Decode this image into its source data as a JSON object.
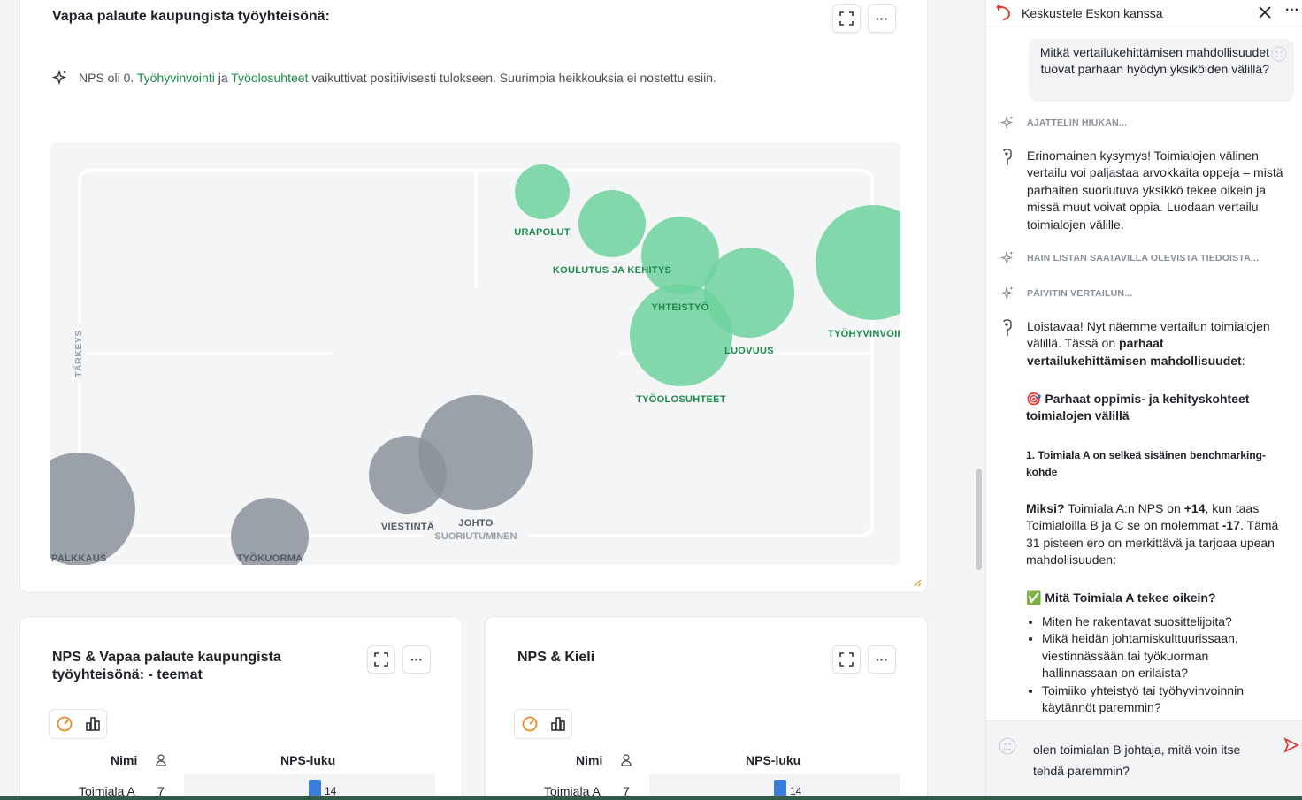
{
  "top_card": {
    "title": "Vapaa palaute kaupungista työyhteisönä:",
    "insight_prefix": "NPS oli 0.",
    "insight_link1": "Työhyvinvointi",
    "insight_mid": "ja",
    "insight_link2": "Työolosuhteet",
    "insight_suffix": "vaikuttivat positiivisesti tulokseen. Suurimpia heikkouksia ei nostettu esiin.",
    "fullscreen_icon": "expand-icon",
    "more_label": "···"
  },
  "bubble_chart": {
    "type": "scatter",
    "ylabel": "TÄRKEYS",
    "xlabel": "SUORIUTUMINEN",
    "positive_color": "#6fd29d",
    "neutral_color": "#8a929a",
    "points": [
      {
        "name": "URAPOLUT",
        "group": "positive"
      },
      {
        "name": "KOULUTUS JA KEHITYS",
        "group": "positive"
      },
      {
        "name": "YHTEISTYÖ",
        "group": "positive"
      },
      {
        "name": "LUOVUUS",
        "group": "positive"
      },
      {
        "name": "TYÖOLOSUHTEET",
        "group": "positive"
      },
      {
        "name": "TYÖHYVINVOII",
        "group": "positive"
      },
      {
        "name": "VIESTINTÄ",
        "group": "neutral"
      },
      {
        "name": "JOHTO",
        "group": "neutral"
      },
      {
        "name": "PALKKAUS",
        "group": "neutral"
      },
      {
        "name": "TYÖKUORMA",
        "group": "neutral"
      }
    ]
  },
  "card_themes": {
    "title": "NPS & Vapaa palaute kaupungista työyhteisönä: - teemat",
    "col_name": "Nimi",
    "col_nps": "NPS-luku",
    "row_name": "Toimiala A",
    "row_count": "7",
    "row_value": 14
  },
  "card_language": {
    "title": "NPS & Kieli",
    "col_name": "Nimi",
    "col_nps": "NPS-luku",
    "row_name": "Toimiala A",
    "row_count": "7",
    "row_value": 14
  },
  "chat": {
    "header_title": "Keskustele Eskon kanssa",
    "user_question": "Mitkä vertailukehittämisen mahdollisuudet tuovat parhaan hyödyn yksiköiden välillä?",
    "status1": "AJATTELIN HIUKAN...",
    "bot_msg1": "Erinomainen kysymys! Toimialojen välinen vertailu voi paljastaa arvokkaita oppeja – mistä parhaiten suoriutuva yksikkö tekee oikein ja missä muut voivat oppia. Luodaan vertailu toimialojen välille.",
    "status2": "HAIN LISTAN SAATAVILLA OLEVISTA TIEDOISTA...",
    "status3": "PÄIVITIN VERTAILUN...",
    "bot_msg2_a": "Loistavaa! Nyt näemme vertailun toimialojen välillä. Tässä on",
    "bot_msg2_b": "parhaat vertailukehittämisen mahdollisuudet",
    "bot_msg2_c": ":",
    "heading1": "🎯 Parhaat oppimis- ja kehityskohteet toimialojen välillä",
    "heading2": "1. Toimiala A on selkeä sisäinen benchmarking-kohde",
    "why_label": "Miksi?",
    "why_a": "Toimiala A:n NPS on",
    "why_b": "+14",
    "why_c": ", kun taas Toimialoilla B ja C se on molemmat",
    "why_d": "-17",
    "why_e": ". Tämä 31 pisteen ero on merkittävä ja tarjoaa upean mahdollisuuden:",
    "heading3": "✅ Mitä Toimiala A tekee oikein?",
    "bullets": [
      "Miten he rakentavat suosittelijoita?",
      "Mikä heidän johtamiskulttuurissaan, viestinnässään tai työkuorman hallinnassaan on erilaista?",
      "Toimiiko yhteistyö tai työhyvinvoinnin käytännöt paremmin?"
    ],
    "input_value": "olen toimialan B johtaja, mitä voin itse tehdä paremmin?"
  }
}
